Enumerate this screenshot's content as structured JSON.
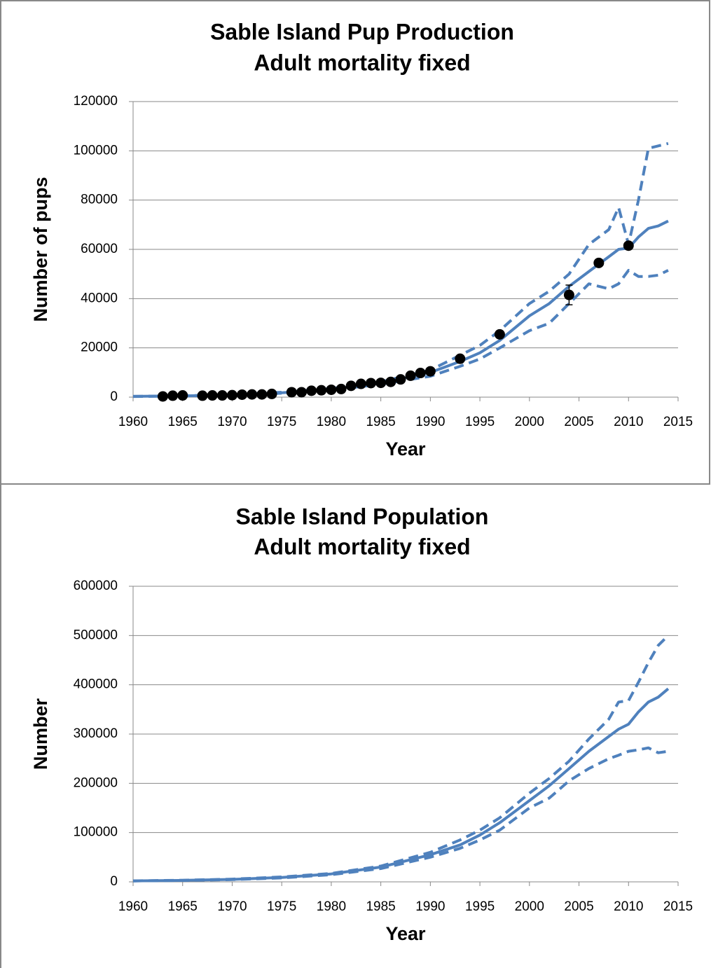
{
  "chart_data": [
    {
      "type": "line",
      "title": "Sable Island Pup Production",
      "subtitle": "Adult mortality fixed",
      "x_label": "Year",
      "y_label": "Number of pups",
      "xlim": [
        1960,
        2015
      ],
      "xticks": [
        1960,
        1965,
        1970,
        1975,
        1980,
        1985,
        1990,
        1995,
        2000,
        2005,
        2010,
        2015
      ],
      "ylim": [
        0,
        120000
      ],
      "yticks": [
        0,
        20000,
        40000,
        60000,
        80000,
        100000,
        120000
      ],
      "grid": true,
      "x": [
        1960,
        1965,
        1970,
        1975,
        1980,
        1985,
        1990,
        1993,
        1995,
        1997,
        2000,
        2002,
        2004,
        2006,
        2008,
        2009,
        2010,
        2011,
        2012,
        2013,
        2014
      ],
      "series": [
        {
          "color": "#4f81bd",
          "style": "solid",
          "values": [
            300,
            500,
            900,
            1800,
            3200,
            5700,
            10000,
            14500,
            18000,
            23000,
            33000,
            38000,
            45000,
            51000,
            57000,
            60000,
            60500,
            65000,
            68500,
            69500,
            71500
          ]
        },
        {
          "color": "#4f81bd",
          "style": "dashed",
          "values": [
            300,
            550,
            1000,
            2000,
            3500,
            6200,
            11000,
            17000,
            21000,
            27000,
            38000,
            43000,
            50000,
            62000,
            68000,
            77000,
            62000,
            80000,
            101000,
            102000,
            103000
          ]
        },
        {
          "color": "#4f81bd",
          "style": "dashed",
          "values": [
            250,
            450,
            800,
            1600,
            2900,
            5200,
            8500,
            12500,
            15500,
            20000,
            27000,
            30000,
            38000,
            46000,
            44000,
            46000,
            51500,
            49000,
            49000,
            49500,
            51500
          ]
        }
      ],
      "points": {
        "color": "#000000",
        "x": [
          1963,
          1964,
          1965,
          1967,
          1968,
          1969,
          1970,
          1971,
          1972,
          1973,
          1974,
          1976,
          1977,
          1978,
          1979,
          1980,
          1981,
          1982,
          1983,
          1984,
          1985,
          1986,
          1987,
          1988,
          1989,
          1990,
          1993,
          1997,
          2004,
          2007,
          2010
        ],
        "values": [
          300,
          600,
          700,
          600,
          700,
          700,
          800,
          1000,
          1100,
          1100,
          1300,
          2000,
          2000,
          2600,
          2800,
          3000,
          3300,
          4600,
          5400,
          5700,
          5800,
          6200,
          7200,
          8700,
          9800,
          10500,
          15600,
          25500,
          41500,
          54500,
          61500
        ],
        "errors": [
          null,
          null,
          null,
          null,
          null,
          null,
          null,
          null,
          null,
          null,
          null,
          1500,
          null,
          null,
          null,
          null,
          null,
          null,
          null,
          null,
          null,
          null,
          null,
          null,
          null,
          null,
          null,
          null,
          4000,
          null,
          null
        ]
      }
    },
    {
      "type": "line",
      "title": "Sable Island Population",
      "subtitle": "Adult mortality fixed",
      "x_label": "Year",
      "y_label": "Number",
      "xlim": [
        1960,
        2015
      ],
      "xticks": [
        1960,
        1965,
        1970,
        1975,
        1980,
        1985,
        1990,
        1995,
        2000,
        2005,
        2010,
        2015
      ],
      "ylim": [
        0,
        600000
      ],
      "yticks": [
        0,
        100000,
        200000,
        300000,
        400000,
        500000,
        600000
      ],
      "grid": true,
      "x": [
        1960,
        1965,
        1970,
        1975,
        1980,
        1985,
        1990,
        1993,
        1995,
        1997,
        2000,
        2002,
        2004,
        2006,
        2008,
        2009,
        2010,
        2011,
        2012,
        2013,
        2014
      ],
      "series": [
        {
          "color": "#4f81bd",
          "style": "solid",
          "values": [
            2000,
            3000,
            5000,
            9000,
            16000,
            30000,
            55000,
            75000,
            95000,
            120000,
            165000,
            195000,
            230000,
            265000,
            295000,
            310000,
            320000,
            345000,
            365000,
            375000,
            392000
          ]
        },
        {
          "color": "#4f81bd",
          "style": "dashed",
          "values": [
            2000,
            3200,
            5500,
            10000,
            17000,
            32000,
            60000,
            85000,
            105000,
            130000,
            180000,
            210000,
            245000,
            290000,
            330000,
            365000,
            368000,
            405000,
            445000,
            480000,
            500000
          ]
        },
        {
          "color": "#4f81bd",
          "style": "dashed",
          "values": [
            1800,
            2800,
            4600,
            8000,
            14500,
            27000,
            50000,
            68000,
            85000,
            105000,
            150000,
            170000,
            205000,
            230000,
            250000,
            257000,
            265000,
            268000,
            272000,
            262000,
            265000
          ]
        }
      ]
    }
  ]
}
